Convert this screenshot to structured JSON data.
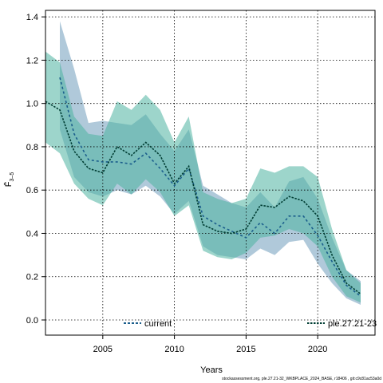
{
  "chart_data": {
    "type": "line",
    "xlabel": "Years",
    "ylabel": "F̄",
    "ylabel_sub": "3–5",
    "xlim": [
      2001,
      2024
    ],
    "ylim": [
      -0.07,
      1.43
    ],
    "xticks": [
      2005,
      2010,
      2015,
      2020
    ],
    "yticks": [
      0.0,
      0.2,
      0.4,
      0.6,
      0.8,
      1.0,
      1.2,
      1.4
    ],
    "ytick_labels": [
      "0.0",
      "0.2",
      "0.4",
      "0.6",
      "0.8",
      "1.0",
      "1.2",
      "1.4"
    ],
    "grid": true,
    "x": [
      2001,
      2002,
      2003,
      2004,
      2005,
      2006,
      2007,
      2008,
      2009,
      2010,
      2011,
      2012,
      2013,
      2014,
      2015,
      2016,
      2017,
      2018,
      2019,
      2020,
      2021,
      2022,
      2023
    ],
    "series": [
      {
        "name": "current",
        "color": "#1b5e8c",
        "band_color": "#6f9dbb",
        "values": [
          null,
          1.12,
          0.86,
          0.74,
          0.73,
          0.73,
          0.72,
          0.77,
          0.7,
          0.62,
          0.7,
          0.48,
          0.44,
          0.41,
          0.38,
          0.45,
          0.4,
          0.48,
          0.48,
          0.39,
          0.27,
          0.16,
          0.11
        ],
        "upper": [
          null,
          1.38,
          1.16,
          0.91,
          0.92,
          0.91,
          0.9,
          0.95,
          0.86,
          0.78,
          0.88,
          0.62,
          0.58,
          0.54,
          0.52,
          0.59,
          0.52,
          0.64,
          0.66,
          0.56,
          0.38,
          0.23,
          0.18
        ],
        "lower": [
          null,
          0.88,
          0.66,
          0.59,
          0.57,
          0.6,
          0.58,
          0.62,
          0.57,
          0.49,
          0.55,
          0.34,
          0.3,
          0.29,
          0.28,
          0.33,
          0.3,
          0.36,
          0.37,
          0.26,
          0.17,
          0.1,
          0.07
        ]
      },
      {
        "name": "ple.27.21-23",
        "color": "#003d33",
        "band_color": "#4db3a0",
        "values": [
          1.01,
          0.97,
          0.78,
          0.7,
          0.68,
          0.8,
          0.76,
          0.82,
          0.76,
          0.63,
          0.71,
          0.44,
          0.41,
          0.4,
          0.42,
          0.53,
          0.52,
          0.57,
          0.55,
          0.48,
          0.3,
          0.17,
          0.12
        ],
        "upper": [
          1.24,
          1.19,
          0.94,
          0.86,
          0.85,
          1.01,
          0.97,
          1.04,
          0.97,
          0.82,
          0.94,
          0.59,
          0.56,
          0.54,
          0.56,
          0.7,
          0.68,
          0.71,
          0.71,
          0.66,
          0.42,
          0.23,
          0.17
        ],
        "lower": [
          0.82,
          0.77,
          0.63,
          0.56,
          0.53,
          0.63,
          0.58,
          0.65,
          0.59,
          0.48,
          0.53,
          0.32,
          0.29,
          0.28,
          0.31,
          0.38,
          0.39,
          0.42,
          0.4,
          0.34,
          0.2,
          0.11,
          0.08
        ]
      }
    ]
  },
  "footer": "stockassessment.org, ple.27.21-32_WKBPLACE_2024_BASE, r18406 , git:c9c81ac53a0d"
}
